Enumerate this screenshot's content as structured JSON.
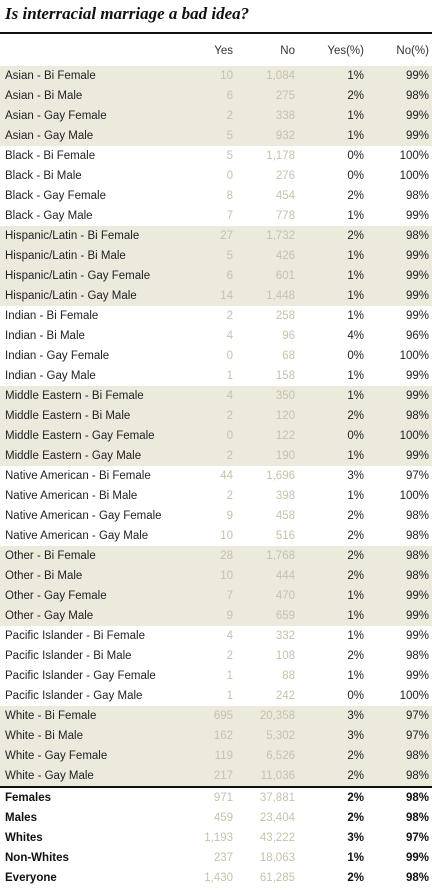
{
  "title": "Is interracial marriage a bad idea?",
  "chart_data": {
    "type": "table",
    "title": "Is interracial marriage a bad idea?",
    "columns": [
      "Yes",
      "No",
      "Yes(%)",
      "No(%)"
    ],
    "groups": [
      {
        "rows": [
          {
            "label": "Asian - Bi Female",
            "yes": "10",
            "no": "1,084",
            "yes_pct": "1%",
            "no_pct": "99%"
          },
          {
            "label": "Asian - Bi Male",
            "yes": "6",
            "no": "275",
            "yes_pct": "2%",
            "no_pct": "98%"
          },
          {
            "label": "Asian - Gay Female",
            "yes": "2",
            "no": "338",
            "yes_pct": "1%",
            "no_pct": "99%"
          },
          {
            "label": "Asian - Gay Male",
            "yes": "5",
            "no": "932",
            "yes_pct": "1%",
            "no_pct": "99%"
          }
        ]
      },
      {
        "rows": [
          {
            "label": "Black - Bi Female",
            "yes": "5",
            "no": "1,178",
            "yes_pct": "0%",
            "no_pct": "100%"
          },
          {
            "label": "Black - Bi Male",
            "yes": "0",
            "no": "276",
            "yes_pct": "0%",
            "no_pct": "100%"
          },
          {
            "label": "Black - Gay Female",
            "yes": "8",
            "no": "454",
            "yes_pct": "2%",
            "no_pct": "98%"
          },
          {
            "label": "Black - Gay Male",
            "yes": "7",
            "no": "778",
            "yes_pct": "1%",
            "no_pct": "99%"
          }
        ]
      },
      {
        "rows": [
          {
            "label": "Hispanic/Latin - Bi Female",
            "yes": "27",
            "no": "1,732",
            "yes_pct": "2%",
            "no_pct": "98%"
          },
          {
            "label": "Hispanic/Latin - Bi Male",
            "yes": "5",
            "no": "426",
            "yes_pct": "1%",
            "no_pct": "99%"
          },
          {
            "label": "Hispanic/Latin - Gay Female",
            "yes": "6",
            "no": "601",
            "yes_pct": "1%",
            "no_pct": "99%"
          },
          {
            "label": "Hispanic/Latin - Gay Male",
            "yes": "14",
            "no": "1,448",
            "yes_pct": "1%",
            "no_pct": "99%"
          }
        ]
      },
      {
        "rows": [
          {
            "label": "Indian - Bi Female",
            "yes": "2",
            "no": "258",
            "yes_pct": "1%",
            "no_pct": "99%"
          },
          {
            "label": "Indian - Bi Male",
            "yes": "4",
            "no": "96",
            "yes_pct": "4%",
            "no_pct": "96%"
          },
          {
            "label": "Indian - Gay Female",
            "yes": "0",
            "no": "68",
            "yes_pct": "0%",
            "no_pct": "100%"
          },
          {
            "label": "Indian - Gay Male",
            "yes": "1",
            "no": "158",
            "yes_pct": "1%",
            "no_pct": "99%"
          }
        ]
      },
      {
        "rows": [
          {
            "label": "Middle Eastern - Bi Female",
            "yes": "4",
            "no": "350",
            "yes_pct": "1%",
            "no_pct": "99%"
          },
          {
            "label": "Middle Eastern - Bi Male",
            "yes": "2",
            "no": "120",
            "yes_pct": "2%",
            "no_pct": "98%"
          },
          {
            "label": "Middle Eastern - Gay Female",
            "yes": "0",
            "no": "122",
            "yes_pct": "0%",
            "no_pct": "100%"
          },
          {
            "label": "Middle Eastern - Gay Male",
            "yes": "2",
            "no": "190",
            "yes_pct": "1%",
            "no_pct": "99%"
          }
        ]
      },
      {
        "rows": [
          {
            "label": "Native American - Bi Female",
            "yes": "44",
            "no": "1,696",
            "yes_pct": "3%",
            "no_pct": "97%"
          },
          {
            "label": "Native American - Bi Male",
            "yes": "2",
            "no": "398",
            "yes_pct": "1%",
            "no_pct": "100%"
          },
          {
            "label": "Native American - Gay Female",
            "yes": "9",
            "no": "458",
            "yes_pct": "2%",
            "no_pct": "98%"
          },
          {
            "label": "Native American - Gay Male",
            "yes": "10",
            "no": "516",
            "yes_pct": "2%",
            "no_pct": "98%"
          }
        ]
      },
      {
        "rows": [
          {
            "label": "Other - Bi Female",
            "yes": "28",
            "no": "1,768",
            "yes_pct": "2%",
            "no_pct": "98%"
          },
          {
            "label": "Other - Bi Male",
            "yes": "10",
            "no": "444",
            "yes_pct": "2%",
            "no_pct": "98%"
          },
          {
            "label": "Other - Gay Female",
            "yes": "7",
            "no": "470",
            "yes_pct": "1%",
            "no_pct": "99%"
          },
          {
            "label": "Other - Gay Male",
            "yes": "9",
            "no": "659",
            "yes_pct": "1%",
            "no_pct": "99%"
          }
        ]
      },
      {
        "rows": [
          {
            "label": "Pacific Islander - Bi Female",
            "yes": "4",
            "no": "332",
            "yes_pct": "1%",
            "no_pct": "99%"
          },
          {
            "label": "Pacific Islander - Bi Male",
            "yes": "2",
            "no": "108",
            "yes_pct": "2%",
            "no_pct": "98%"
          },
          {
            "label": "Pacific Islander - Gay Female",
            "yes": "1",
            "no": "88",
            "yes_pct": "1%",
            "no_pct": "99%"
          },
          {
            "label": "Pacific Islander - Gay Male",
            "yes": "1",
            "no": "242",
            "yes_pct": "0%",
            "no_pct": "100%"
          }
        ]
      },
      {
        "rows": [
          {
            "label": "White - Bi Female",
            "yes": "695",
            "no": "20,358",
            "yes_pct": "3%",
            "no_pct": "97%"
          },
          {
            "label": "White - Bi Male",
            "yes": "162",
            "no": "5,302",
            "yes_pct": "3%",
            "no_pct": "97%"
          },
          {
            "label": "White - Gay Female",
            "yes": "119",
            "no": "6,526",
            "yes_pct": "2%",
            "no_pct": "98%"
          },
          {
            "label": "White - Gay Male",
            "yes": "217",
            "no": "11,036",
            "yes_pct": "2%",
            "no_pct": "98%"
          }
        ]
      }
    ],
    "summary": [
      {
        "label": "Females",
        "yes": "971",
        "no": "37,881",
        "yes_pct": "2%",
        "no_pct": "98%"
      },
      {
        "label": "Males",
        "yes": "459",
        "no": "23,404",
        "yes_pct": "2%",
        "no_pct": "98%"
      },
      {
        "label": "Whites",
        "yes": "1,193",
        "no": "43,222",
        "yes_pct": "3%",
        "no_pct": "97%"
      },
      {
        "label": "Non-Whites",
        "yes": "237",
        "no": "18,063",
        "yes_pct": "1%",
        "no_pct": "99%"
      },
      {
        "label": "Everyone",
        "yes": "1,430",
        "no": "61,285",
        "yes_pct": "2%",
        "no_pct": "98%"
      }
    ]
  },
  "colors": {
    "shaded_band": "#ece9dd",
    "faded_number": "#c7c2ab",
    "rule": "#111111"
  }
}
